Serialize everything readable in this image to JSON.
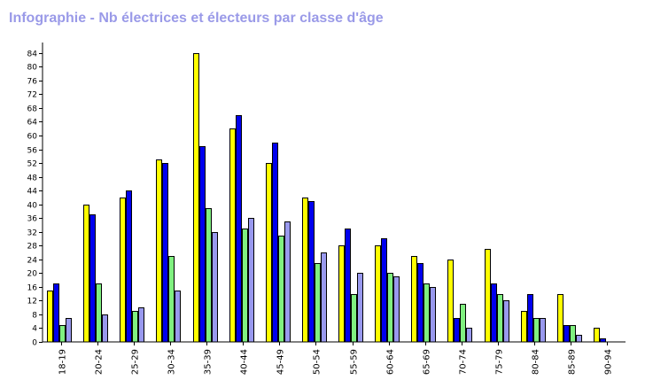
{
  "title": "Infographie - Nb électrices et électeurs par classe d'âge",
  "chart_data": {
    "type": "bar",
    "categories": [
      "18-19",
      "20-24",
      "25-29",
      "30-34",
      "35-39",
      "40-44",
      "45-49",
      "50-54",
      "55-59",
      "60-64",
      "65-69",
      "70-74",
      "75-79",
      "80-84",
      "85-89",
      "90-94"
    ],
    "series": [
      {
        "color": "#ffff00",
        "values": [
          15,
          40,
          42,
          53,
          84,
          62,
          52,
          42,
          28,
          28,
          25,
          24,
          27,
          9,
          14,
          4
        ]
      },
      {
        "color": "#0000ee",
        "values": [
          17,
          37,
          44,
          52,
          57,
          66,
          58,
          41,
          33,
          30,
          23,
          7,
          17,
          14,
          5,
          1
        ]
      },
      {
        "color": "#80f080",
        "values": [
          5,
          17,
          9,
          25,
          39,
          33,
          31,
          23,
          14,
          20,
          17,
          11,
          14,
          7,
          5,
          0
        ]
      },
      {
        "color": "#9999ee",
        "values": [
          7,
          8,
          10,
          15,
          32,
          36,
          35,
          26,
          20,
          19,
          16,
          4,
          12,
          7,
          2,
          0
        ]
      }
    ],
    "y_ticks": [
      0,
      4,
      8,
      12,
      16,
      20,
      24,
      28,
      32,
      36,
      40,
      44,
      48,
      52,
      56,
      60,
      64,
      68,
      72,
      76,
      80,
      84
    ],
    "ylim": [
      0,
      86
    ],
    "grid": false,
    "legend": "none"
  }
}
